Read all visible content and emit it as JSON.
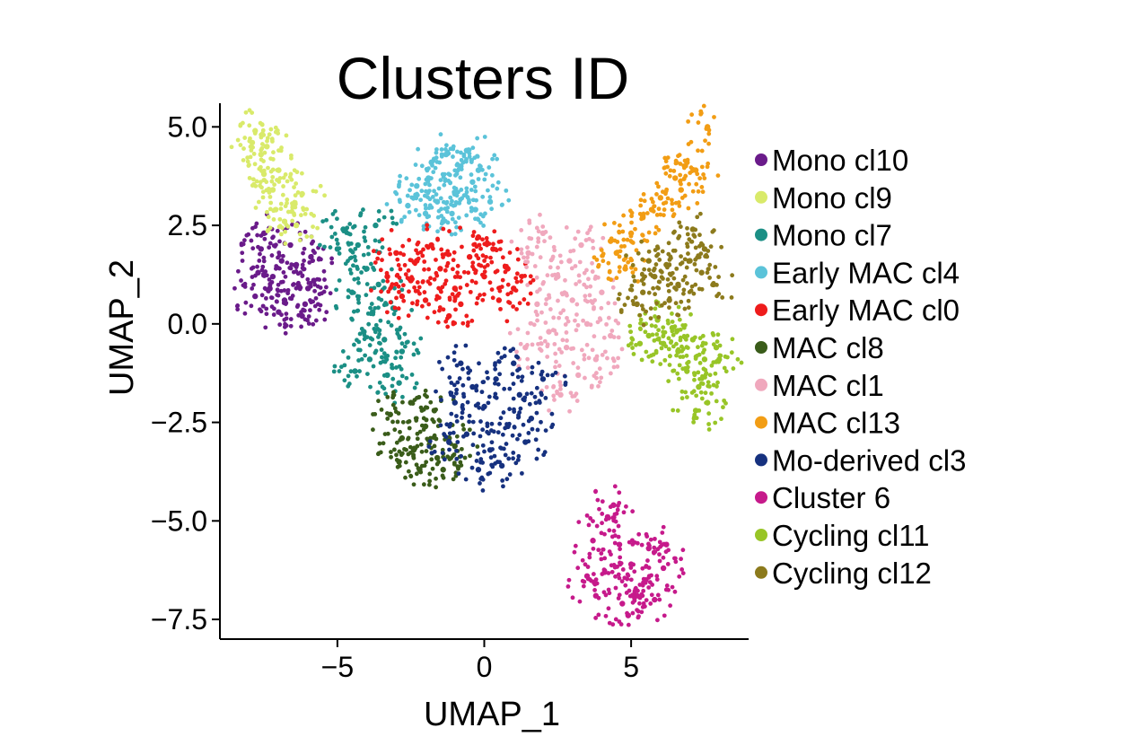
{
  "chart_data": {
    "type": "scatter",
    "title": "Clusters ID",
    "xlabel": "UMAP_1",
    "ylabel": "UMAP_2",
    "xlim": [
      -9.0,
      9.0
    ],
    "ylim": [
      -8.0,
      5.6
    ],
    "x_ticks": [
      -5,
      0,
      5
    ],
    "x_tick_labels": [
      "−5",
      "0",
      "5"
    ],
    "y_ticks": [
      5.0,
      2.5,
      0.0,
      -2.5,
      -5.0,
      -7.5
    ],
    "y_tick_labels": [
      "5.0",
      "2.5",
      "0.0",
      "−2.5",
      "−5.0",
      "−7.5"
    ],
    "grid": false,
    "legend_position": "right",
    "series": [
      {
        "name": "Mono cl10",
        "color": "#6a1b8a",
        "points": [
          [
            -7.6,
            1.9
          ],
          [
            -7.2,
            1.2
          ],
          [
            -6.8,
            0.6
          ],
          [
            -6.4,
            1.5
          ],
          [
            -6.0,
            0.9
          ],
          [
            -7.8,
            0.7
          ],
          [
            -7.0,
            0.3
          ],
          [
            -6.2,
            0.2
          ],
          [
            -7.5,
            2.3
          ],
          [
            -6.6,
            2.0
          ],
          [
            -5.8,
            1.1
          ],
          [
            -7.3,
            0.9
          ],
          [
            -6.9,
            1.6
          ],
          [
            -6.1,
            0.5
          ],
          [
            -7.7,
            1.3
          ],
          [
            -5.9,
            1.7
          ]
        ]
      },
      {
        "name": "Mono cl9",
        "color": "#d9ea6a",
        "points": [
          [
            -7.9,
            4.6
          ],
          [
            -7.6,
            4.3
          ],
          [
            -7.5,
            3.8
          ],
          [
            -7.2,
            3.4
          ],
          [
            -7.1,
            2.9
          ],
          [
            -6.8,
            2.6
          ],
          [
            -6.5,
            3.0
          ],
          [
            -7.8,
            4.9
          ],
          [
            -6.4,
            2.5
          ],
          [
            -7.0,
            3.9
          ],
          [
            -6.2,
            3.3
          ],
          [
            -7.4,
            4.5
          ]
        ]
      },
      {
        "name": "Mono cl7",
        "color": "#1b8f85",
        "points": [
          [
            -4.8,
            2.4
          ],
          [
            -4.3,
            2.0
          ],
          [
            -4.0,
            1.4
          ],
          [
            -4.5,
            0.8
          ],
          [
            -3.8,
            0.3
          ],
          [
            -3.4,
            -0.4
          ],
          [
            -3.9,
            -0.9
          ],
          [
            -3.3,
            -1.3
          ],
          [
            -4.1,
            -0.2
          ],
          [
            -2.8,
            -0.7
          ],
          [
            -5.0,
            1.9
          ],
          [
            -3.6,
            1.0
          ],
          [
            -4.4,
            -1.2
          ],
          [
            -2.9,
            -1.5
          ],
          [
            -3.7,
            2.5
          ],
          [
            -3.1,
            0.4
          ]
        ]
      },
      {
        "name": "Early MAC cl4",
        "color": "#5bc3d9",
        "points": [
          [
            -2.3,
            3.5
          ],
          [
            -1.8,
            4.1
          ],
          [
            -1.3,
            4.3
          ],
          [
            -0.8,
            4.0
          ],
          [
            -0.4,
            3.6
          ],
          [
            -1.6,
            3.1
          ],
          [
            -1.0,
            3.3
          ],
          [
            -0.3,
            2.9
          ],
          [
            -2.0,
            2.8
          ],
          [
            -0.6,
            4.4
          ],
          [
            -1.4,
            2.6
          ],
          [
            0.2,
            3.1
          ],
          [
            -1.9,
            3.7
          ],
          [
            -1.1,
            2.8
          ],
          [
            -2.6,
            3.0
          ],
          [
            -0.2,
            3.9
          ]
        ]
      },
      {
        "name": "Early MAC cl0",
        "color": "#ee1c1c",
        "points": [
          [
            -3.0,
            1.8
          ],
          [
            -2.5,
            1.1
          ],
          [
            -2.0,
            0.6
          ],
          [
            -1.5,
            1.4
          ],
          [
            -1.0,
            0.9
          ],
          [
            -0.5,
            1.7
          ],
          [
            0.0,
            1.2
          ],
          [
            0.5,
            0.6
          ],
          [
            -1.8,
            2.0
          ],
          [
            -2.8,
            0.7
          ],
          [
            -1.2,
            0.2
          ],
          [
            0.8,
            1.4
          ],
          [
            -0.2,
            2.2
          ],
          [
            -2.3,
            1.6
          ],
          [
            1.0,
            0.9
          ],
          [
            -0.8,
            0.5
          ],
          [
            -3.3,
            1.2
          ],
          [
            0.3,
            1.9
          ]
        ]
      },
      {
        "name": "MAC cl8",
        "color": "#3a5c1a",
        "points": [
          [
            -3.2,
            -2.3
          ],
          [
            -2.8,
            -2.9
          ],
          [
            -2.4,
            -3.2
          ],
          [
            -2.0,
            -2.6
          ],
          [
            -1.6,
            -3.4
          ],
          [
            -1.2,
            -2.9
          ],
          [
            -2.2,
            -3.7
          ],
          [
            -1.7,
            -2.2
          ],
          [
            -2.9,
            -3.5
          ],
          [
            -1.0,
            -3.1
          ],
          [
            -2.5,
            -2.0
          ],
          [
            -1.4,
            -3.7
          ]
        ]
      },
      {
        "name": "MAC cl1",
        "color": "#f0a8bd",
        "points": [
          [
            1.5,
            1.8
          ],
          [
            2.0,
            2.3
          ],
          [
            2.5,
            1.2
          ],
          [
            3.0,
            0.6
          ],
          [
            3.5,
            0.0
          ],
          [
            2.8,
            -0.6
          ],
          [
            3.2,
            -1.3
          ],
          [
            2.2,
            -0.2
          ],
          [
            4.0,
            0.8
          ],
          [
            3.8,
            -0.9
          ],
          [
            1.8,
            0.5
          ],
          [
            2.6,
            -1.8
          ],
          [
            4.3,
            -0.3
          ],
          [
            3.3,
            2.0
          ],
          [
            1.4,
            -0.6
          ],
          [
            2.9,
            1.6
          ]
        ]
      },
      {
        "name": "MAC cl13",
        "color": "#f29d14",
        "points": [
          [
            4.5,
            1.8
          ],
          [
            5.0,
            2.3
          ],
          [
            5.4,
            2.7
          ],
          [
            6.0,
            3.2
          ],
          [
            6.5,
            3.7
          ],
          [
            6.9,
            4.1
          ],
          [
            7.2,
            3.9
          ],
          [
            7.6,
            5.0
          ],
          [
            4.8,
            1.4
          ],
          [
            5.7,
            2.9
          ],
          [
            6.7,
            3.4
          ],
          [
            4.3,
            2.1
          ]
        ]
      },
      {
        "name": "Mo-derived cl3",
        "color": "#16317f",
        "points": [
          [
            -0.8,
            -1.0
          ],
          [
            -0.4,
            -1.6
          ],
          [
            0.0,
            -2.1
          ],
          [
            0.4,
            -1.4
          ],
          [
            0.8,
            -2.6
          ],
          [
            -0.6,
            -2.8
          ],
          [
            0.2,
            -3.2
          ],
          [
            -1.0,
            -2.0
          ],
          [
            1.2,
            -1.8
          ],
          [
            1.6,
            -2.4
          ],
          [
            0.6,
            -3.6
          ],
          [
            -0.2,
            -3.7
          ],
          [
            2.0,
            -1.4
          ],
          [
            1.0,
            -1.0
          ],
          [
            -1.2,
            -3.0
          ],
          [
            1.4,
            -3.0
          ]
        ]
      },
      {
        "name": "Cluster 6",
        "color": "#c61a8b",
        "points": [
          [
            3.7,
            -5.5
          ],
          [
            4.2,
            -4.9
          ],
          [
            4.6,
            -5.6
          ],
          [
            5.0,
            -6.1
          ],
          [
            5.5,
            -6.5
          ],
          [
            4.1,
            -6.3
          ],
          [
            3.8,
            -6.9
          ],
          [
            4.7,
            -7.1
          ],
          [
            5.6,
            -5.7
          ],
          [
            6.1,
            -6.2
          ],
          [
            5.2,
            -6.9
          ],
          [
            4.4,
            -4.6
          ],
          [
            6.2,
            -5.6
          ],
          [
            3.5,
            -6.4
          ],
          [
            4.9,
            -7.4
          ],
          [
            5.8,
            -7.0
          ]
        ]
      },
      {
        "name": "Cycling cl11",
        "color": "#98c527",
        "points": [
          [
            5.6,
            -0.3
          ],
          [
            6.1,
            -0.5
          ],
          [
            6.6,
            -0.7
          ],
          [
            7.1,
            -0.4
          ],
          [
            7.5,
            -0.9
          ],
          [
            7.9,
            -0.6
          ],
          [
            6.9,
            -1.2
          ],
          [
            5.9,
            0.1
          ],
          [
            7.3,
            -1.6
          ],
          [
            7.6,
            -2.0
          ],
          [
            6.4,
            -0.1
          ],
          [
            8.0,
            -0.9
          ],
          [
            7.2,
            -2.2
          ],
          [
            5.3,
            -0.5
          ]
        ]
      },
      {
        "name": "Cycling cl12",
        "color": "#8c7a1c",
        "points": [
          [
            5.4,
            0.8
          ],
          [
            5.8,
            1.2
          ],
          [
            6.2,
            1.5
          ],
          [
            6.6,
            1.0
          ],
          [
            7.0,
            1.6
          ],
          [
            7.4,
            1.3
          ],
          [
            7.8,
            1.0
          ],
          [
            6.3,
            0.6
          ],
          [
            5.6,
            1.6
          ],
          [
            7.1,
            2.4
          ],
          [
            7.5,
            1.9
          ],
          [
            5.2,
            0.5
          ]
        ]
      }
    ]
  }
}
